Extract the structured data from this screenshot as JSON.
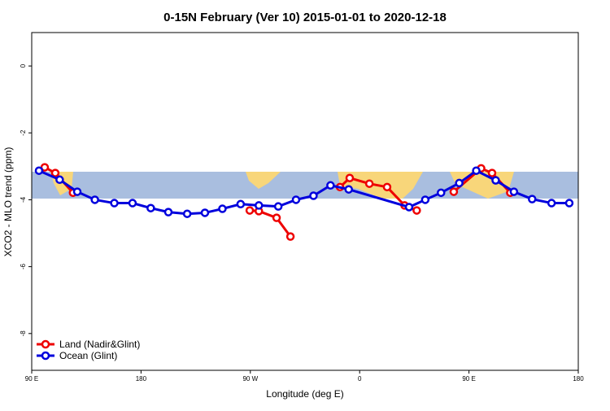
{
  "chart_data": {
    "type": "line",
    "title": "0-15N February (Ver 10)   2015-01-01 to 2020-12-18",
    "x_label": "Longitude (deg E)",
    "y_label": "XCO2 - MLO trend (ppm)",
    "xlim": [
      90,
      540
    ],
    "xticks": [
      {
        "value": 90,
        "label": "90 E"
      },
      180,
      {
        "value": 270,
        "label": "90 W"
      },
      {
        "value": 360,
        "label": "0"
      },
      {
        "value": 450,
        "label": "90 E"
      },
      {
        "value": 540,
        "label": "180"
      }
    ],
    "ylim": [
      -9.1,
      1
    ],
    "yticks": [
      0,
      -2,
      -4,
      -6,
      -8
    ],
    "legend": "bottom-left",
    "series": [
      {
        "name": "Land (Nadir&Glint)",
        "color": "#ee0000",
        "x": [
          100.7,
          109.4,
          124,
          200,
          269.5,
          277,
          291.6,
          303,
          320,
          343.8,
          351.8,
          368,
          382.6,
          397,
          407,
          420,
          437.5,
          460,
          469,
          484
        ],
        "values": [
          -3.03,
          -3.2,
          -3.79,
          null,
          -4.32,
          -4.34,
          -4.54,
          -5.1,
          null,
          -3.62,
          -3.35,
          -3.52,
          -3.62,
          -4.17,
          -4.32,
          null,
          -3.76,
          -3.06,
          -3.2,
          -3.79
        ]
      },
      {
        "name": "Ocean (Glint)",
        "color": "#0000dd",
        "x": [
          96,
          113,
          127.5,
          142,
          158,
          173,
          188,
          202.5,
          218,
          232.6,
          247,
          262,
          277,
          293,
          307.6,
          322,
          336,
          351,
          400.7,
          414,
          427,
          442,
          456,
          472,
          487,
          502,
          518,
          532.6
        ],
        "values": [
          -3.13,
          -3.4,
          -3.76,
          -4.0,
          -4.1,
          -4.1,
          -4.25,
          -4.37,
          -4.42,
          -4.39,
          -4.27,
          -4.13,
          -4.17,
          -4.2,
          -4.0,
          -3.88,
          -3.57,
          -3.69,
          -4.22,
          -4.0,
          -3.79,
          -3.5,
          -3.13,
          -3.42,
          -3.76,
          -3.98,
          -4.1,
          -4.1
        ]
      }
    ]
  }
}
